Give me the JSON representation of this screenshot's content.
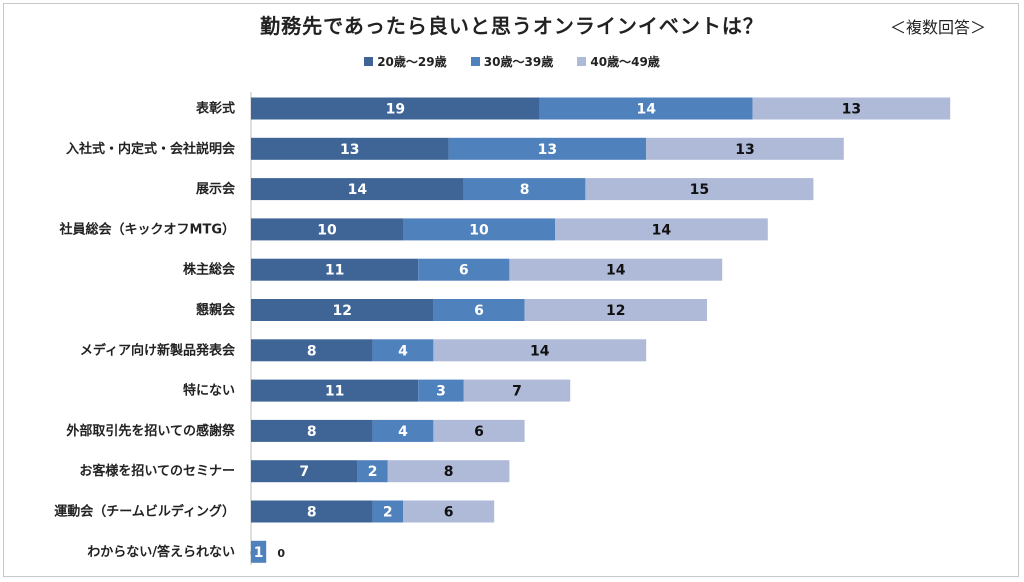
{
  "title": "勤務先であったら良いと思うオンラインイベントは？",
  "note": "＜複数回答＞",
  "colors": {
    "s1": "#3f6597",
    "s2": "#4f81bd",
    "s3": "#aebad8"
  },
  "chart_data": {
    "type": "bar",
    "orientation": "horizontal",
    "stacked": true,
    "title": "勤務先であったら良いと思うオンラインイベントは？",
    "note": "＜複数回答＞",
    "legend_position": "top",
    "categories": [
      "表彰式",
      "入社式・内定式・会社説明会",
      "展示会",
      "社員総会（キックオフMTG）",
      "株主総会",
      "懇親会",
      "メディア向け新製品発表会",
      "特にない",
      "外部取引先を招いての感謝祭",
      "お客様を招いてのセミナー",
      "運動会（チームビルディング）",
      "わからない/答えられない"
    ],
    "series": [
      {
        "name": "20歳～29歳",
        "values": [
          19,
          13,
          14,
          10,
          11,
          12,
          8,
          11,
          8,
          7,
          8,
          0
        ]
      },
      {
        "name": "30歳～39歳",
        "values": [
          14,
          13,
          8,
          10,
          6,
          6,
          4,
          3,
          4,
          2,
          2,
          1
        ]
      },
      {
        "name": "40歳～49歳",
        "values": [
          13,
          13,
          15,
          14,
          14,
          12,
          14,
          7,
          6,
          8,
          6,
          0
        ]
      }
    ]
  }
}
